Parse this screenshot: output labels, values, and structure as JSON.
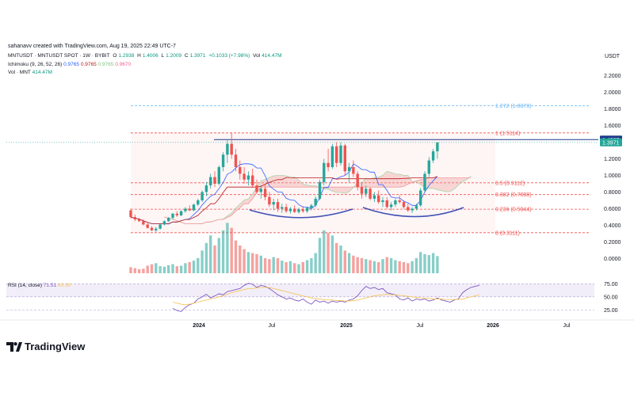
{
  "attribution": "sahanavv created with TradingView.com, Aug 19, 2025 22:49 UTC-7",
  "legend": {
    "symbol": "MNTUSDT · MNTUSDT SPOT · 1W · BYBIT",
    "open_label": "O",
    "open": "1.2938",
    "high_label": "H",
    "high": "1.4006",
    "low_label": "L",
    "low": "1.2009",
    "close_label": "C",
    "close": "1.3971",
    "change": "+0.1033 (+7.98%)",
    "vol_label": "Vol",
    "vol": "414.47M"
  },
  "ichimoku": {
    "label": "Ichimoku (9, 26, 52, 26)",
    "v1": "0.9765",
    "v2": "0.9765",
    "v3": "0.9765",
    "v4": "0.9670",
    "colors": [
      "#2962ff",
      "#b71c1c",
      "#81c784",
      "#f06292"
    ]
  },
  "volume_legend": {
    "label": "Vol · MNT",
    "value": "414.47M"
  },
  "rsi_legend": {
    "label": "RSI (14, close)",
    "value": "71.51",
    "ma": "63.30"
  },
  "currency": "USDT",
  "footer": {
    "brand": "TradingView"
  },
  "colors": {
    "up": "#26a69a",
    "down": "#ef5350",
    "fib": "#ef5350",
    "fib_ext": "#64b5f6",
    "current_price": "#1e3a8a",
    "neckline": "#3f51b5",
    "rsi": "#7e57c2",
    "rsi_ma": "#f5c55b"
  },
  "chart_data": {
    "type": "candlestick",
    "ylim": [
      -0.1,
      2.3
    ],
    "y_ticks": [
      "2.2000",
      "2.0000",
      "1.8000",
      "1.6000",
      "1.2000",
      "1.0000",
      "0.8000",
      "0.6000",
      "0.4000",
      "0.2000",
      "0.0000"
    ],
    "x_ticks": [
      "2024",
      "Jul",
      "2025",
      "Jul",
      "2026",
      "Jul"
    ],
    "price_tags": [
      {
        "value": "1.4307",
        "level": 1.4307
      },
      {
        "value": "1.3971",
        "level": 1.3971
      }
    ],
    "fib_levels": [
      {
        "label": "1.272 (1.8378)",
        "value": 1.8378
      },
      {
        "label": "1 (1.5114)",
        "value": 1.5114
      },
      {
        "label": "0.5 (0.9112)",
        "value": 0.9112
      },
      {
        "label": "0.382 (0.7698)",
        "value": 0.7698
      },
      {
        "label": "0.236 (0.5944)",
        "value": 0.5944
      },
      {
        "label": "0 (0.3111)",
        "value": 0.3111
      }
    ],
    "rsi_ticks": [
      "75.00",
      "50.00",
      "25.00"
    ],
    "candles": [
      [
        0.58,
        0.6,
        0.48,
        0.5
      ],
      [
        0.5,
        0.53,
        0.45,
        0.47
      ],
      [
        0.47,
        0.49,
        0.44,
        0.45
      ],
      [
        0.45,
        0.47,
        0.4,
        0.41
      ],
      [
        0.41,
        0.43,
        0.36,
        0.37
      ],
      [
        0.37,
        0.39,
        0.33,
        0.34
      ],
      [
        0.34,
        0.38,
        0.32,
        0.36
      ],
      [
        0.36,
        0.42,
        0.35,
        0.41
      ],
      [
        0.41,
        0.46,
        0.4,
        0.45
      ],
      [
        0.45,
        0.5,
        0.44,
        0.49
      ],
      [
        0.49,
        0.55,
        0.47,
        0.54
      ],
      [
        0.54,
        0.57,
        0.5,
        0.52
      ],
      [
        0.52,
        0.58,
        0.51,
        0.57
      ],
      [
        0.57,
        0.62,
        0.55,
        0.6
      ],
      [
        0.6,
        0.64,
        0.57,
        0.58
      ],
      [
        0.58,
        0.66,
        0.57,
        0.65
      ],
      [
        0.65,
        0.72,
        0.63,
        0.7
      ],
      [
        0.7,
        0.82,
        0.68,
        0.8
      ],
      [
        0.8,
        0.92,
        0.75,
        0.88
      ],
      [
        0.88,
        1.02,
        0.84,
        0.98
      ],
      [
        0.98,
        1.05,
        0.86,
        0.9
      ],
      [
        0.9,
        1.12,
        0.88,
        1.1
      ],
      [
        1.1,
        1.28,
        1.05,
        1.25
      ],
      [
        1.25,
        1.42,
        1.15,
        1.38
      ],
      [
        1.38,
        1.51,
        1.2,
        1.25
      ],
      [
        1.25,
        1.32,
        1.05,
        1.1
      ],
      [
        1.1,
        1.18,
        0.95,
        1.02
      ],
      [
        1.02,
        1.1,
        0.9,
        0.95
      ],
      [
        0.95,
        1.05,
        0.88,
        1.0
      ],
      [
        1.0,
        1.08,
        0.85,
        0.88
      ],
      [
        0.88,
        0.95,
        0.78,
        0.8
      ],
      [
        0.8,
        0.88,
        0.72,
        0.84
      ],
      [
        0.84,
        0.9,
        0.7,
        0.74
      ],
      [
        0.74,
        0.8,
        0.62,
        0.65
      ],
      [
        0.65,
        0.72,
        0.58,
        0.68
      ],
      [
        0.68,
        0.72,
        0.56,
        0.6
      ],
      [
        0.6,
        0.66,
        0.55,
        0.62
      ],
      [
        0.62,
        0.66,
        0.55,
        0.57
      ],
      [
        0.57,
        0.62,
        0.54,
        0.6
      ],
      [
        0.6,
        0.64,
        0.55,
        0.56
      ],
      [
        0.56,
        0.61,
        0.54,
        0.59
      ],
      [
        0.59,
        0.63,
        0.55,
        0.57
      ],
      [
        0.57,
        0.62,
        0.55,
        0.61
      ],
      [
        0.61,
        0.66,
        0.58,
        0.64
      ],
      [
        0.64,
        0.75,
        0.62,
        0.72
      ],
      [
        0.72,
        0.95,
        0.7,
        0.92
      ],
      [
        0.92,
        1.2,
        0.88,
        1.15
      ],
      [
        1.15,
        1.32,
        1.05,
        1.1
      ],
      [
        1.1,
        1.38,
        1.08,
        1.35
      ],
      [
        1.35,
        1.4,
        1.1,
        1.15
      ],
      [
        1.15,
        1.4,
        1.12,
        1.36
      ],
      [
        1.36,
        1.38,
        1.0,
        1.05
      ],
      [
        1.05,
        1.15,
        0.92,
        1.1
      ],
      [
        1.1,
        1.18,
        0.98,
        1.02
      ],
      [
        1.02,
        1.05,
        0.82,
        0.86
      ],
      [
        0.86,
        0.92,
        0.72,
        0.78
      ],
      [
        0.78,
        0.88,
        0.74,
        0.84
      ],
      [
        0.84,
        0.86,
        0.7,
        0.72
      ],
      [
        0.72,
        0.8,
        0.68,
        0.76
      ],
      [
        0.76,
        0.82,
        0.66,
        0.68
      ],
      [
        0.68,
        0.74,
        0.62,
        0.7
      ],
      [
        0.7,
        0.74,
        0.6,
        0.62
      ],
      [
        0.62,
        0.68,
        0.58,
        0.65
      ],
      [
        0.65,
        0.72,
        0.62,
        0.7
      ],
      [
        0.7,
        0.76,
        0.66,
        0.68
      ],
      [
        0.68,
        0.7,
        0.6,
        0.62
      ],
      [
        0.62,
        0.66,
        0.56,
        0.58
      ],
      [
        0.58,
        0.62,
        0.55,
        0.6
      ],
      [
        0.6,
        0.66,
        0.58,
        0.64
      ],
      [
        0.64,
        0.85,
        0.62,
        0.82
      ],
      [
        0.82,
        1.05,
        0.8,
        1.02
      ],
      [
        1.02,
        1.22,
        0.98,
        1.18
      ],
      [
        1.18,
        1.32,
        1.15,
        1.29
      ],
      [
        1.29,
        1.4,
        1.2,
        1.397
      ]
    ],
    "volume": [
      12,
      10,
      8,
      9,
      15,
      18,
      20,
      14,
      13,
      16,
      18,
      14,
      15,
      20,
      22,
      25,
      30,
      45,
      60,
      75,
      55,
      70,
      85,
      100,
      90,
      65,
      55,
      48,
      42,
      40,
      38,
      35,
      30,
      28,
      32,
      30,
      25,
      22,
      24,
      20,
      18,
      22,
      26,
      30,
      40,
      70,
      85,
      80,
      75,
      60,
      55,
      45,
      40,
      35,
      32,
      30,
      28,
      26,
      24,
      22,
      28,
      32,
      30,
      26,
      24,
      22,
      20,
      24,
      30,
      42,
      38,
      36,
      40,
      34
    ],
    "rsi": [
      28,
      24,
      22,
      30,
      35,
      38,
      46,
      50,
      55,
      48,
      52,
      56,
      54,
      60,
      62,
      64,
      66,
      72,
      76,
      74,
      68,
      72,
      70,
      66,
      60,
      54,
      50,
      46,
      48,
      44,
      42,
      46,
      40,
      36,
      44,
      40,
      42,
      38,
      42,
      40,
      42,
      40,
      44,
      46,
      52,
      62,
      70,
      66,
      68,
      64,
      66,
      58,
      56,
      54,
      46,
      44,
      48,
      42,
      46,
      44,
      46,
      42,
      44,
      48,
      44,
      42,
      40,
      44,
      46,
      58,
      64,
      68,
      70,
      72
    ],
    "rsi_ma": [
      40,
      38,
      36,
      35,
      36,
      38,
      40,
      42,
      44,
      46,
      48,
      50,
      52,
      55,
      58,
      60,
      62,
      64,
      66,
      66,
      67,
      68,
      68,
      68,
      66,
      64,
      62,
      60,
      58,
      56,
      54,
      52,
      50,
      48,
      47,
      46,
      45,
      44,
      44,
      43,
      43,
      42,
      42,
      43,
      44,
      46,
      48,
      50,
      52,
      53,
      54,
      55,
      54,
      54,
      53,
      52,
      51,
      50,
      49,
      48,
      47,
      47,
      46,
      46,
      46,
      45,
      45,
      45,
      45,
      46,
      48,
      50,
      52,
      54
    ]
  }
}
